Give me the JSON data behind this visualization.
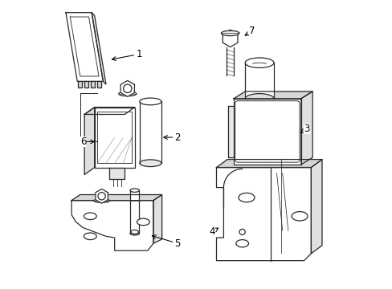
{
  "bg_color": "#ffffff",
  "line_color": "#2a2a2a",
  "lw": 0.9,
  "figsize": [
    4.89,
    3.6
  ],
  "dpi": 100,
  "labels": [
    {
      "num": "1",
      "xt": 0.3,
      "yt": 0.815,
      "xp": 0.195,
      "yp": 0.795
    },
    {
      "num": "2",
      "xt": 0.435,
      "yt": 0.525,
      "xp": 0.375,
      "yp": 0.525
    },
    {
      "num": "3",
      "xt": 0.885,
      "yt": 0.555,
      "xp": 0.855,
      "yp": 0.535
    },
    {
      "num": "4",
      "xt": 0.555,
      "yt": 0.195,
      "xp": 0.585,
      "yp": 0.215
    },
    {
      "num": "5",
      "xt": 0.435,
      "yt": 0.155,
      "xp": 0.335,
      "yp": 0.185
    },
    {
      "num": "6",
      "xt": 0.105,
      "yt": 0.51,
      "xp": 0.155,
      "yp": 0.51
    },
    {
      "num": "7",
      "xt": 0.695,
      "yt": 0.895,
      "xp": 0.66,
      "yp": 0.875
    }
  ]
}
